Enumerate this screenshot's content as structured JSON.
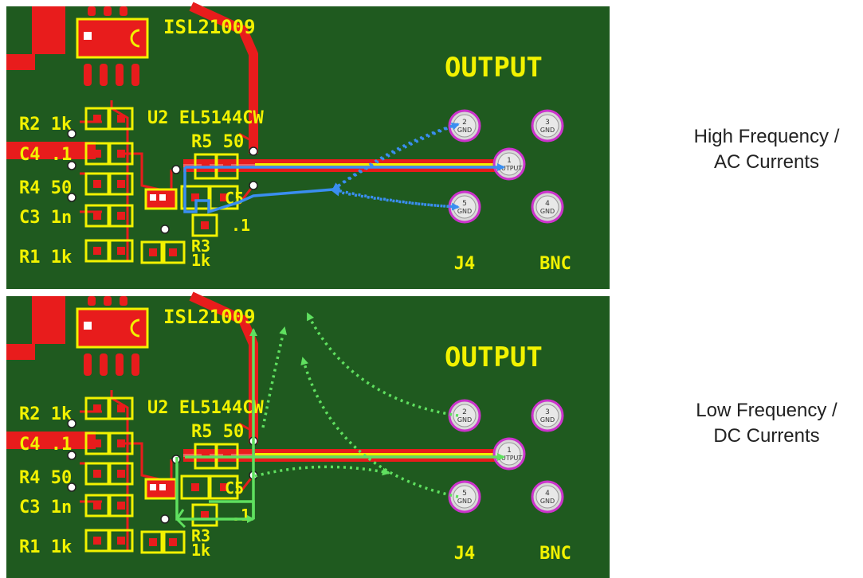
{
  "colors": {
    "board": "#1f5a1f",
    "copper": "#e81c1c",
    "silkscreen": "#f2f200",
    "ac_flow": "#3a8ef0",
    "dc_flow": "#5fe05f",
    "pin_ring": "#cc33cc",
    "connector": "#d8d8d8"
  },
  "panels": [
    {
      "id": "top",
      "chip_label": "ISL21009",
      "amp_label": "U2 EL5144CW",
      "output_label": "OUTPUT",
      "r5_label": "R5 50",
      "c5_label": "C5",
      "c5_value": ".1",
      "r3_label": "R3",
      "r3_value": "1k",
      "left_labels": [
        "R2 1k",
        "C4 .1",
        "R4 50",
        "C3 1n",
        "R1 1k"
      ],
      "connector_label": "J4",
      "bnc_label": "BNC",
      "pins": [
        {
          "num": "2",
          "text": "GND"
        },
        {
          "num": "3",
          "text": "GND"
        },
        {
          "num": "1",
          "text": "OUTPUT"
        },
        {
          "num": "5",
          "text": "GND"
        },
        {
          "num": "4",
          "text": "GND"
        }
      ],
      "flow": "ac",
      "caption": [
        "High Frequency /",
        "AC Currents"
      ]
    },
    {
      "id": "bottom",
      "chip_label": "ISL21009",
      "amp_label": "U2 EL5144CW",
      "output_label": "OUTPUT",
      "r5_label": "R5 50",
      "c5_label": "C5",
      "c5_value": ".1",
      "r3_label": "R3",
      "r3_value": "1k",
      "left_labels": [
        "R2 1k",
        "C4 .1",
        "R4 50",
        "C3 1n",
        "R1 1k"
      ],
      "connector_label": "J4",
      "bnc_label": "BNC",
      "pins": [
        {
          "num": "2",
          "text": "GND"
        },
        {
          "num": "3",
          "text": "GND"
        },
        {
          "num": "1",
          "text": "OUTPUT"
        },
        {
          "num": "5",
          "text": "GND"
        },
        {
          "num": "4",
          "text": "GND"
        }
      ],
      "flow": "dc",
      "caption": [
        "Low Frequency /",
        "DC Currents"
      ]
    }
  ]
}
